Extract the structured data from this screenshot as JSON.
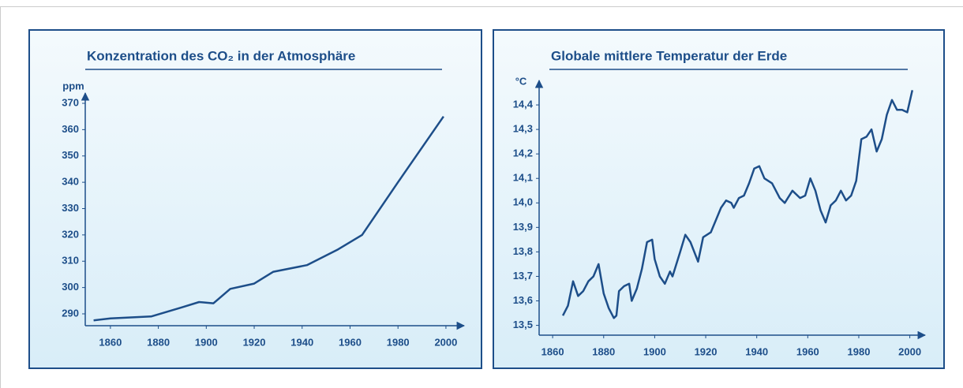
{
  "chart_data": [
    {
      "type": "line",
      "title": "Konzentration des CO₂ in der Atmosphäre",
      "y_label": "ppm",
      "color": "#1d4e89",
      "x": [
        1853,
        1860,
        1877,
        1890,
        1897,
        1903,
        1910,
        1920,
        1928,
        1942,
        1955,
        1965,
        1980,
        1999
      ],
      "values": [
        287.5,
        288.3,
        289,
        292.5,
        294.5,
        294,
        299.5,
        301.5,
        306,
        308.5,
        314.5,
        320,
        340,
        365
      ],
      "xlim": [
        1849.5,
        2007.6
      ],
      "xticks": [
        1860,
        1880,
        1900,
        1920,
        1940,
        1960,
        1980,
        2000
      ],
      "ylim": [
        285.5,
        373.9
      ],
      "yticks": [
        290,
        300,
        310,
        320,
        330,
        340,
        350,
        360,
        370
      ]
    },
    {
      "type": "line",
      "title": "Globale mittlere Temperatur der Erde",
      "y_label": "°C",
      "color": "#1d4e89",
      "x": [
        1864,
        1866,
        1868,
        1870,
        1872,
        1874,
        1876,
        1878,
        1880,
        1882,
        1884,
        1885,
        1886,
        1888,
        1890,
        1891,
        1893,
        1895,
        1897,
        1899,
        1900,
        1902,
        1904,
        1906,
        1907,
        1910,
        1912,
        1914,
        1917,
        1919,
        1922,
        1924,
        1926,
        1928,
        1930,
        1931,
        1933,
        1935,
        1937,
        1939,
        1941,
        1943,
        1946,
        1949,
        1951,
        1954,
        1957,
        1959,
        1961,
        1963,
        1965,
        1967,
        1969,
        1971,
        1973,
        1975,
        1977,
        1979,
        1981,
        1983,
        1985,
        1987,
        1989,
        1991,
        1993,
        1995,
        1997,
        1999,
        2001
      ],
      "values": [
        13.54,
        13.58,
        13.68,
        13.62,
        13.64,
        13.68,
        13.7,
        13.75,
        13.63,
        13.57,
        13.53,
        13.54,
        13.64,
        13.66,
        13.67,
        13.6,
        13.65,
        13.73,
        13.84,
        13.85,
        13.77,
        13.7,
        13.67,
        13.72,
        13.7,
        13.8,
        13.87,
        13.84,
        13.76,
        13.86,
        13.88,
        13.93,
        13.98,
        14.01,
        14.0,
        13.98,
        14.02,
        14.03,
        14.08,
        14.14,
        14.15,
        14.1,
        14.08,
        14.02,
        14.0,
        14.05,
        14.02,
        14.03,
        14.1,
        14.05,
        13.97,
        13.92,
        13.99,
        14.01,
        14.05,
        14.01,
        14.03,
        14.09,
        14.26,
        14.27,
        14.3,
        14.21,
        14.26,
        14.36,
        14.42,
        14.38,
        14.38,
        14.37,
        14.46
      ],
      "xlim": [
        1854.7,
        2006
      ],
      "xticks": [
        1860,
        1880,
        1900,
        1920,
        1940,
        1960,
        1980,
        2000
      ],
      "ylim": [
        13.46,
        14.5
      ],
      "yticks": [
        {
          "value": 13.5,
          "label": "13,5"
        },
        {
          "value": 13.6,
          "label": "13,6"
        },
        {
          "value": 13.7,
          "label": "13,7"
        },
        {
          "value": 13.8,
          "label": "13,8"
        },
        {
          "value": 13.9,
          "label": "13,9"
        },
        {
          "value": 14.0,
          "label": "14,0"
        },
        {
          "value": 14.1,
          "label": "14,1"
        },
        {
          "value": 14.2,
          "label": "14,2"
        },
        {
          "value": 14.3,
          "label": "14,3"
        },
        {
          "value": 14.4,
          "label": "14,4"
        }
      ]
    }
  ]
}
